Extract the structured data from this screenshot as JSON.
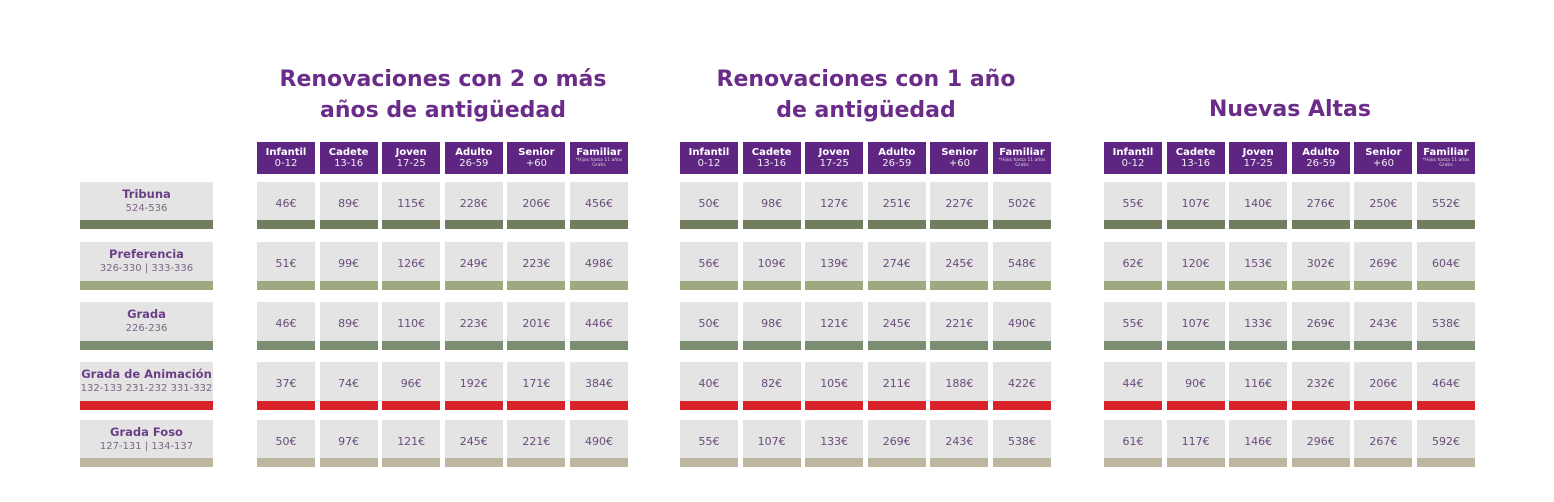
{
  "sections": [
    {
      "title_line1": "Renovaciones con 2 o más",
      "title_line2": "años de antigüedad",
      "prices": [
        [
          "46€",
          "89€",
          "115€",
          "228€",
          "206€",
          "456€"
        ],
        [
          "51€",
          "99€",
          "126€",
          "249€",
          "223€",
          "498€"
        ],
        [
          "46€",
          "89€",
          "110€",
          "223€",
          "201€",
          "446€"
        ],
        [
          "37€",
          "74€",
          "96€",
          "192€",
          "171€",
          "384€"
        ],
        [
          "50€",
          "97€",
          "121€",
          "245€",
          "221€",
          "490€"
        ]
      ]
    },
    {
      "title_line1": "Renovaciones con 1 año",
      "title_line2": "de antigüedad",
      "prices": [
        [
          "50€",
          "98€",
          "127€",
          "251€",
          "227€",
          "502€"
        ],
        [
          "56€",
          "109€",
          "139€",
          "274€",
          "245€",
          "548€"
        ],
        [
          "50€",
          "98€",
          "121€",
          "245€",
          "221€",
          "490€"
        ],
        [
          "40€",
          "82€",
          "105€",
          "211€",
          "188€",
          "422€"
        ],
        [
          "55€",
          "107€",
          "133€",
          "269€",
          "243€",
          "538€"
        ]
      ]
    },
    {
      "title_line1": "Nuevas Altas",
      "title_line2": "",
      "prices": [
        [
          "55€",
          "107€",
          "140€",
          "276€",
          "250€",
          "552€"
        ],
        [
          "62€",
          "120€",
          "153€",
          "302€",
          "269€",
          "604€"
        ],
        [
          "55€",
          "107€",
          "133€",
          "269€",
          "243€",
          "538€"
        ],
        [
          "44€",
          "90€",
          "116€",
          "232€",
          "206€",
          "464€"
        ],
        [
          "61€",
          "117€",
          "146€",
          "296€",
          "267€",
          "592€"
        ]
      ]
    }
  ],
  "categories": [
    {
      "name": "Infantil",
      "range": "0-12"
    },
    {
      "name": "Cadete",
      "range": "13-16"
    },
    {
      "name": "Joven",
      "range": "17-25"
    },
    {
      "name": "Adulto",
      "range": "26-59"
    },
    {
      "name": "Senior",
      "range": "+60"
    },
    {
      "name": "Familiar",
      "range": "*Hijos hasta 11 años Gratis"
    }
  ],
  "zones": [
    {
      "name": "Tribuna",
      "seats": "524-536",
      "color": "#717d5d"
    },
    {
      "name": "Preferencia",
      "seats": "326-330 | 333-336",
      "color": "#9daa7f"
    },
    {
      "name": "Grada",
      "seats": "226-236",
      "color": "#7b8e72"
    },
    {
      "name": "Grada de Animación",
      "seats": "132-133 231-232 331-332",
      "color": "#d9232a"
    },
    {
      "name": "Grada Foso",
      "seats": "127-131 | 134-137",
      "color": "#bdb7a1"
    }
  ]
}
